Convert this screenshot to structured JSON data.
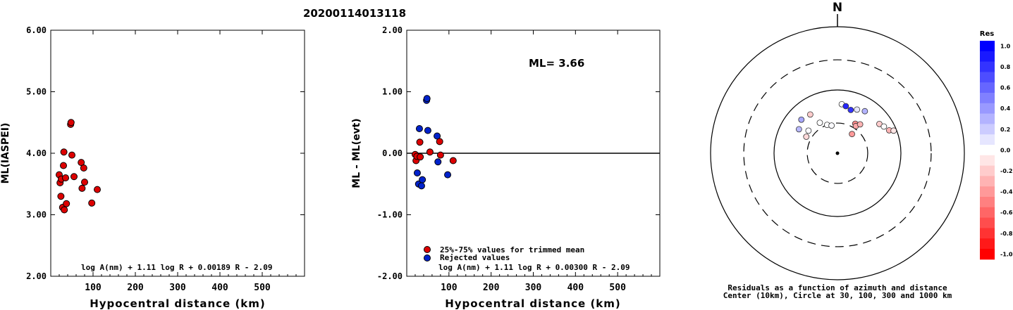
{
  "header": {
    "title": "20200114013118"
  },
  "chart_data": [
    {
      "type": "scatter",
      "title": "",
      "xlabel": "Hypocentral distance (km)",
      "ylabel": "ML(IASPEI)",
      "xlim": [
        0,
        600
      ],
      "ylim": [
        2.0,
        6.0
      ],
      "x_ticks": [
        "100",
        "200",
        "300",
        "400",
        "500"
      ],
      "x_tick_values": [
        100,
        200,
        300,
        400,
        500
      ],
      "y_ticks": [
        "2.00",
        "3.00",
        "4.00",
        "5.00",
        "6.00"
      ],
      "y_tick_values": [
        2,
        3,
        4,
        5,
        6
      ],
      "formula": "log A(nm) + 1.11 log R + 0.00189 R - 2.09",
      "point_color": "#dd0000",
      "points": [
        {
          "x": 20,
          "y": 3.65
        },
        {
          "x": 22,
          "y": 3.52
        },
        {
          "x": 24,
          "y": 3.3
        },
        {
          "x": 25,
          "y": 3.58
        },
        {
          "x": 28,
          "y": 3.12
        },
        {
          "x": 30,
          "y": 3.8
        },
        {
          "x": 31,
          "y": 4.02
        },
        {
          "x": 32,
          "y": 3.08
        },
        {
          "x": 35,
          "y": 3.6
        },
        {
          "x": 37,
          "y": 3.18
        },
        {
          "x": 47,
          "y": 4.47
        },
        {
          "x": 48,
          "y": 4.5
        },
        {
          "x": 50,
          "y": 3.97
        },
        {
          "x": 55,
          "y": 3.62
        },
        {
          "x": 72,
          "y": 3.85
        },
        {
          "x": 74,
          "y": 3.43
        },
        {
          "x": 78,
          "y": 3.76
        },
        {
          "x": 80,
          "y": 3.53
        },
        {
          "x": 97,
          "y": 3.19
        },
        {
          "x": 110,
          "y": 3.41
        }
      ]
    },
    {
      "type": "scatter",
      "title": "",
      "xlabel": "Hypocentral distance (km)",
      "ylabel": "ML - ML(evt)",
      "xlim": [
        0,
        600
      ],
      "ylim": [
        -2.0,
        2.0
      ],
      "x_ticks": [
        "100",
        "200",
        "300",
        "400",
        "500"
      ],
      "x_tick_values": [
        100,
        200,
        300,
        400,
        500
      ],
      "y_ticks": [
        "-2.00",
        "-1.00",
        "0.00",
        "1.00",
        "2.00"
      ],
      "y_tick_values": [
        -2,
        -1,
        0,
        1,
        2
      ],
      "ml_text": "ML= 3.66",
      "formula": "log A(nm) + 1.11 log R + 0.00300 R - 2.09",
      "legend": [
        {
          "label": "25%-75% values for trimmed mean",
          "color": "#dd0000"
        },
        {
          "label": "Rejected values",
          "color": "#0022cc"
        }
      ],
      "points": [
        {
          "x": 20,
          "y": -0.02,
          "set": "trimmed"
        },
        {
          "x": 22,
          "y": -0.12,
          "set": "trimmed"
        },
        {
          "x": 24,
          "y": -0.05,
          "set": "trimmed"
        },
        {
          "x": 25,
          "y": -0.32,
          "set": "rejected"
        },
        {
          "x": 28,
          "y": -0.5,
          "set": "rejected"
        },
        {
          "x": 30,
          "y": 0.4,
          "set": "rejected"
        },
        {
          "x": 31,
          "y": 0.18,
          "set": "trimmed"
        },
        {
          "x": 32,
          "y": -0.06,
          "set": "trimmed"
        },
        {
          "x": 35,
          "y": -0.53,
          "set": "rejected"
        },
        {
          "x": 37,
          "y": -0.43,
          "set": "rejected"
        },
        {
          "x": 47,
          "y": 0.86,
          "set": "rejected"
        },
        {
          "x": 48,
          "y": 0.89,
          "set": "rejected"
        },
        {
          "x": 50,
          "y": 0.37,
          "set": "rejected"
        },
        {
          "x": 55,
          "y": 0.02,
          "set": "trimmed"
        },
        {
          "x": 72,
          "y": 0.28,
          "set": "rejected"
        },
        {
          "x": 74,
          "y": -0.14,
          "set": "rejected"
        },
        {
          "x": 78,
          "y": 0.19,
          "set": "trimmed"
        },
        {
          "x": 80,
          "y": -0.03,
          "set": "trimmed"
        },
        {
          "x": 97,
          "y": -0.35,
          "set": "rejected"
        },
        {
          "x": 110,
          "y": -0.12,
          "set": "trimmed"
        }
      ]
    }
  ],
  "map": {
    "north_label": "N",
    "caption_line1": "Residuals as a function of azimuth and distance",
    "caption_line2": "Center (10km), Circle at 30, 100, 300 and 1000 km",
    "circle_radii_km": [
      30,
      100,
      300,
      1000
    ],
    "circle_styles": [
      "dashed",
      "solid",
      "dashed",
      "solid"
    ],
    "stations": [
      {
        "az": -62,
        "dist": 36,
        "res": -0.15
      },
      {
        "az": -52,
        "dist": 38,
        "res": 0.02
      },
      {
        "az": -58,
        "dist": 52,
        "res": 0.28
      },
      {
        "az": -47,
        "dist": 60,
        "res": 0.34
      },
      {
        "az": -35,
        "dist": 56,
        "res": -0.2
      },
      {
        "az": -30,
        "dist": 36,
        "res": 0.0
      },
      {
        "az": -20,
        "dist": 30,
        "res": 0.0
      },
      {
        "az": -12,
        "dist": 28,
        "res": 0.02
      },
      {
        "az": 5,
        "dist": 60,
        "res": 0.0
      },
      {
        "az": 10,
        "dist": 57,
        "res": 0.85
      },
      {
        "az": 17,
        "dist": 52,
        "res": 0.8
      },
      {
        "az": 24,
        "dist": 57,
        "res": 0.1
      },
      {
        "az": 33,
        "dist": 62,
        "res": 0.3
      },
      {
        "az": 31,
        "dist": 35,
        "res": -0.45
      },
      {
        "az": 34,
        "dist": 33,
        "res": -0.35
      },
      {
        "az": 38,
        "dist": 38,
        "res": -0.3
      },
      {
        "az": 37,
        "dist": 24,
        "res": -0.4
      },
      {
        "az": 55,
        "dist": 64,
        "res": -0.2
      },
      {
        "az": 60,
        "dist": 70,
        "res": 0.0
      },
      {
        "az": 66,
        "dist": 78,
        "res": -0.3
      },
      {
        "az": 68,
        "dist": 90,
        "res": -0.1
      }
    ]
  },
  "colorbar": {
    "title": "Res",
    "tick_labels": [
      "1.0",
      "0.8",
      "0.6",
      "0.4",
      "0.2",
      "0.0",
      "-0.2",
      "-0.4",
      "-0.6",
      "-0.8",
      "-1.0"
    ],
    "positive_color": "#0000ff",
    "negative_color": "#ff0000"
  }
}
